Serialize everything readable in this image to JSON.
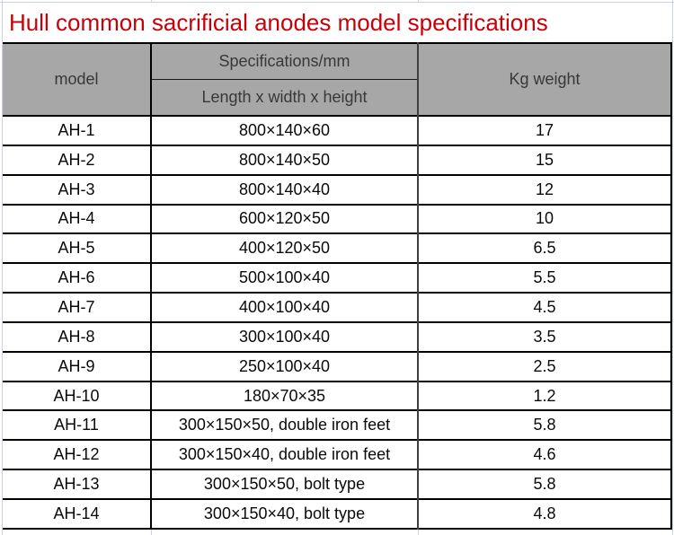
{
  "title": "Hull common sacrificial anodes model specifications",
  "colors": {
    "title_text": "#c80008",
    "header_bg": "#a7a7a7",
    "header_text": "#383838",
    "border": "#000000",
    "gridline": "#cdd2e1"
  },
  "table": {
    "headers": {
      "model": "model",
      "spec_group": "Specifications/mm",
      "spec_sub": "Length x width x height",
      "weight": "Kg weight"
    },
    "rows": [
      {
        "model": "AH-1",
        "spec": "800×140×60",
        "weight": "17"
      },
      {
        "model": "AH-2",
        "spec": "800×140×50",
        "weight": "15"
      },
      {
        "model": "AH-3",
        "spec": "800×140×40",
        "weight": "12"
      },
      {
        "model": "AH-4",
        "spec": "600×120×50",
        "weight": "10"
      },
      {
        "model": "AH-5",
        "spec": "400×120×50",
        "weight": "6.5"
      },
      {
        "model": "AH-6",
        "spec": "500×100×40",
        "weight": "5.5"
      },
      {
        "model": "AH-7",
        "spec": "400×100×40",
        "weight": "4.5"
      },
      {
        "model": "AH-8",
        "spec": "300×100×40",
        "weight": "3.5"
      },
      {
        "model": "AH-9",
        "spec": "250×100×40",
        "weight": "2.5"
      },
      {
        "model": "AH-10",
        "spec": "180×70×35",
        "weight": "1.2"
      },
      {
        "model": "AH-11",
        "spec": "300×150×50, double iron feet",
        "weight": "5.8"
      },
      {
        "model": "AH-12",
        "spec": "300×150×40, double iron feet",
        "weight": "4.6"
      },
      {
        "model": "AH-13",
        "spec": "300×150×50, bolt type",
        "weight": "5.8"
      },
      {
        "model": "AH-14",
        "spec": "300×150×40, bolt type",
        "weight": "4.8"
      }
    ]
  }
}
